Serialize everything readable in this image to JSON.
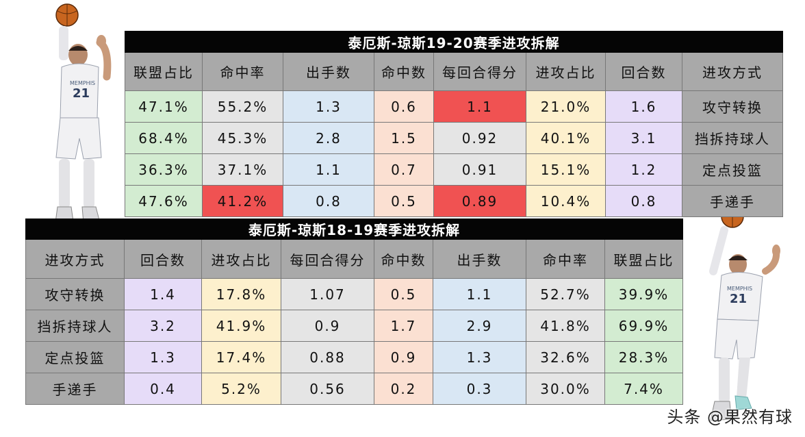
{
  "table_1920": {
    "title": "泰厄斯-琼斯19-20赛季进攻拆解",
    "headers": [
      "联盟占比",
      "命中率",
      "出手数",
      "命中数",
      "每回合得分",
      "进攻占比",
      "回合数",
      "进攻方式"
    ],
    "rows": [
      [
        "47.1%",
        "55.2%",
        "1.3",
        "0.6",
        "1.1",
        "21.0%",
        "1.6",
        "攻守转换"
      ],
      [
        "68.4%",
        "45.3%",
        "2.8",
        "1.5",
        "0.92",
        "40.1%",
        "3.1",
        "挡拆持球人"
      ],
      [
        "36.3%",
        "37.1%",
        "1.1",
        "0.7",
        "0.91",
        "15.1%",
        "1.2",
        "定点投篮"
      ],
      [
        "47.6%",
        "41.2%",
        "0.8",
        "0.5",
        "0.89",
        "10.4%",
        "0.8",
        "手递手"
      ]
    ]
  },
  "table_1819": {
    "title": "泰厄斯-琼斯18-19赛季进攻拆解",
    "headers": [
      "进攻方式",
      "回合数",
      "进攻占比",
      "每回合得分",
      "命中数",
      "出手数",
      "命中率",
      "联盟占比"
    ],
    "rows": [
      [
        "攻守转换",
        "1.4",
        "17.8%",
        "1.07",
        "0.5",
        "1.1",
        "52.7%",
        "39.9%"
      ],
      [
        "挡拆持球人",
        "3.2",
        "41.9%",
        "0.9",
        "1.7",
        "2.9",
        "41.8%",
        "69.9%"
      ],
      [
        "定点投篮",
        "1.3",
        "17.4%",
        "0.88",
        "0.9",
        "1.3",
        "32.6%",
        "28.3%"
      ],
      [
        "手递手",
        "0.4",
        "5.2%",
        "0.56",
        "0.2",
        "0.3",
        "30.0%",
        "7.4%"
      ]
    ]
  },
  "player": {
    "jersey_number": "21",
    "jersey_text": "MEMPHIS"
  },
  "watermark": "头条 @果然有球",
  "colors": {
    "green": "#d3ecd1",
    "grey": "#e5e5e5",
    "blue": "#d9e7f4",
    "peach": "#fbe0d2",
    "yellow": "#fdf0cd",
    "lavender": "#e6dcf8",
    "red": "#f05252",
    "label": "#a9a9a9"
  }
}
